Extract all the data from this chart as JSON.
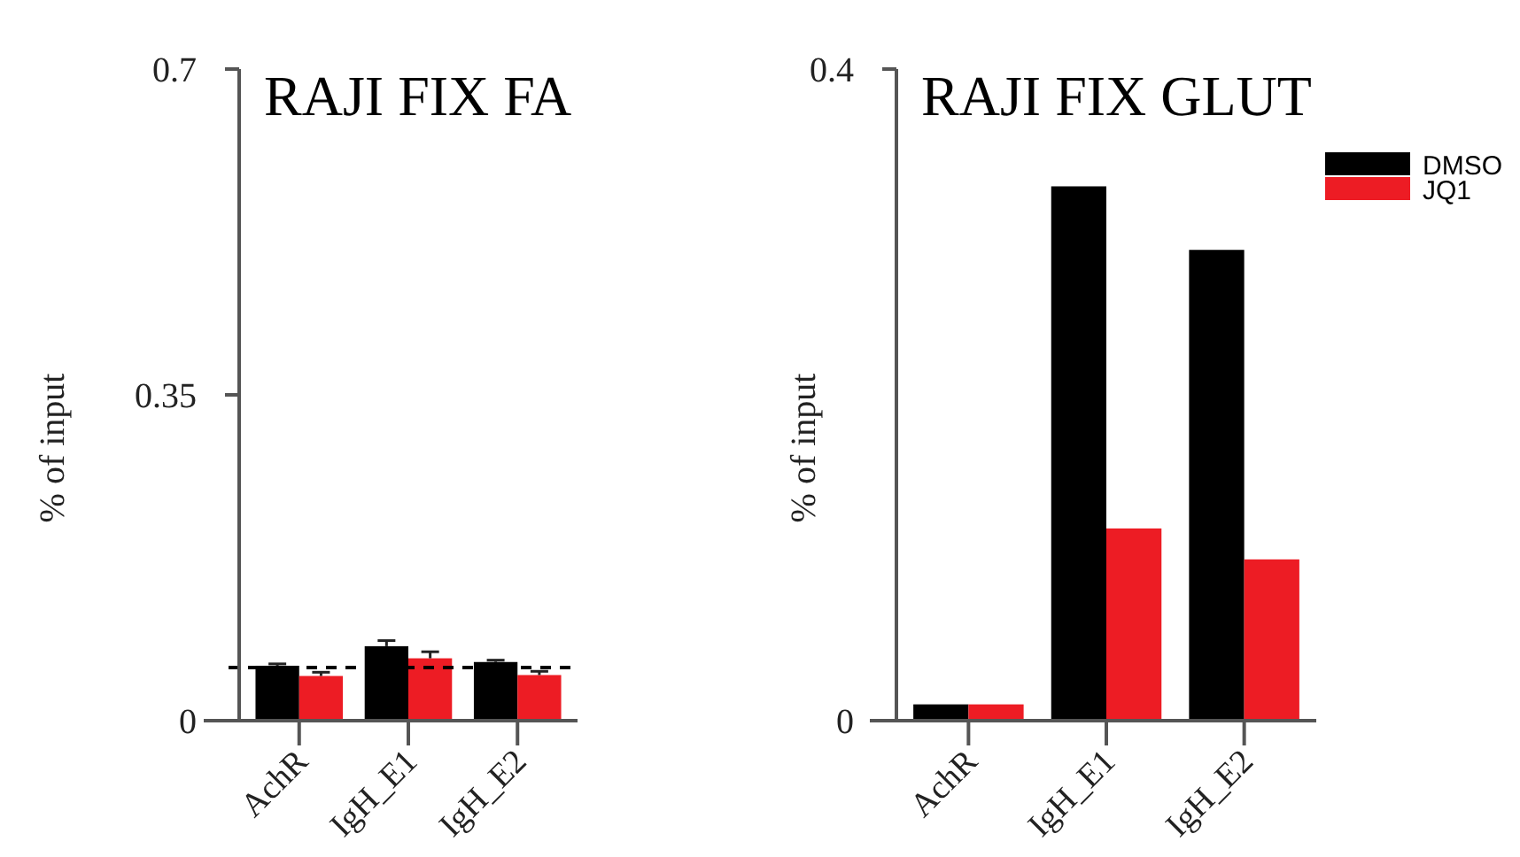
{
  "chart_data": [
    {
      "type": "bar",
      "title": "RAJI FIX FA",
      "ylabel": "% of input",
      "categories": [
        "AchR",
        "IgH_E1",
        "IgH_E2"
      ],
      "ylim": [
        0,
        0.7
      ],
      "yticks": [
        0,
        0.35,
        0.7
      ],
      "legend": false,
      "series": [
        {
          "color": "#000000",
          "values": [
            0.059,
            0.08,
            0.063
          ],
          "errors": [
            [
              0.059,
              0.061
            ],
            [
              0.08,
              0.086
            ],
            [
              0.063,
              0.065
            ]
          ]
        },
        {
          "color": "#ed1c24",
          "values": [
            0.048,
            0.067,
            0.049
          ],
          "errors": [
            [
              0.048,
              0.052
            ],
            [
              0.067,
              0.074
            ],
            [
              0.049,
              0.053
            ]
          ]
        }
      ],
      "ref_lines": [
        {
          "axis": "y",
          "value": 0.057,
          "line_style": "dashed",
          "color": "#000000"
        }
      ]
    },
    {
      "type": "bar",
      "title": "RAJI FIX GLUT",
      "ylabel": "% of input",
      "categories": [
        "AchR",
        "IgH_E1",
        "IgH_E2"
      ],
      "ylim": [
        0,
        0.4
      ],
      "yticks": [
        0,
        0.4
      ],
      "legend": "top right",
      "series": [
        {
          "name": "DMSO",
          "color": "#000000",
          "values": [
            0.01,
            0.328,
            0.289
          ]
        },
        {
          "name": "JQ1",
          "color": "#ed1c24",
          "values": [
            0.01,
            0.118,
            0.099
          ]
        }
      ]
    }
  ]
}
